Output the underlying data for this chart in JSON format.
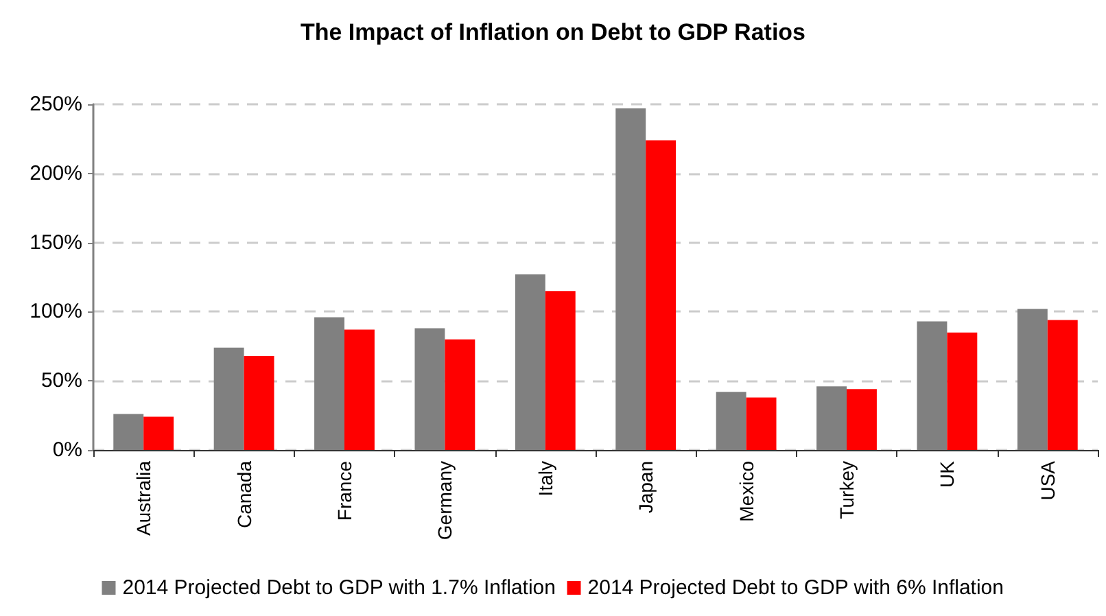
{
  "chart_data": {
    "type": "bar",
    "title": "The Impact of Inflation on Debt to GDP Ratios",
    "categories": [
      "Australia",
      "Canada",
      "France",
      "Germany",
      "Italy",
      "Japan",
      "Mexico",
      "Turkey",
      "UK",
      "USA"
    ],
    "series": [
      {
        "name": "2014 Projected Debt to GDP with 1.7% Inflation",
        "color": "#808080",
        "values": [
          26,
          74,
          96,
          88,
          127,
          247,
          42,
          46,
          93,
          102
        ]
      },
      {
        "name": "2014 Projected Debt to GDP with 6% Inflation",
        "color": "#ff0000",
        "values": [
          24,
          68,
          87,
          80,
          115,
          224,
          38,
          44,
          85,
          94
        ]
      }
    ],
    "ylim": [
      0,
      250
    ],
    "yticks": [
      {
        "value": 0,
        "label": "0%"
      },
      {
        "value": 50,
        "label": "50%"
      },
      {
        "value": 100,
        "label": "100%"
      },
      {
        "value": 150,
        "label": "150%"
      },
      {
        "value": 200,
        "label": "200%"
      },
      {
        "value": 250,
        "label": "250%"
      }
    ],
    "grid": "y",
    "legend": "bottom"
  }
}
